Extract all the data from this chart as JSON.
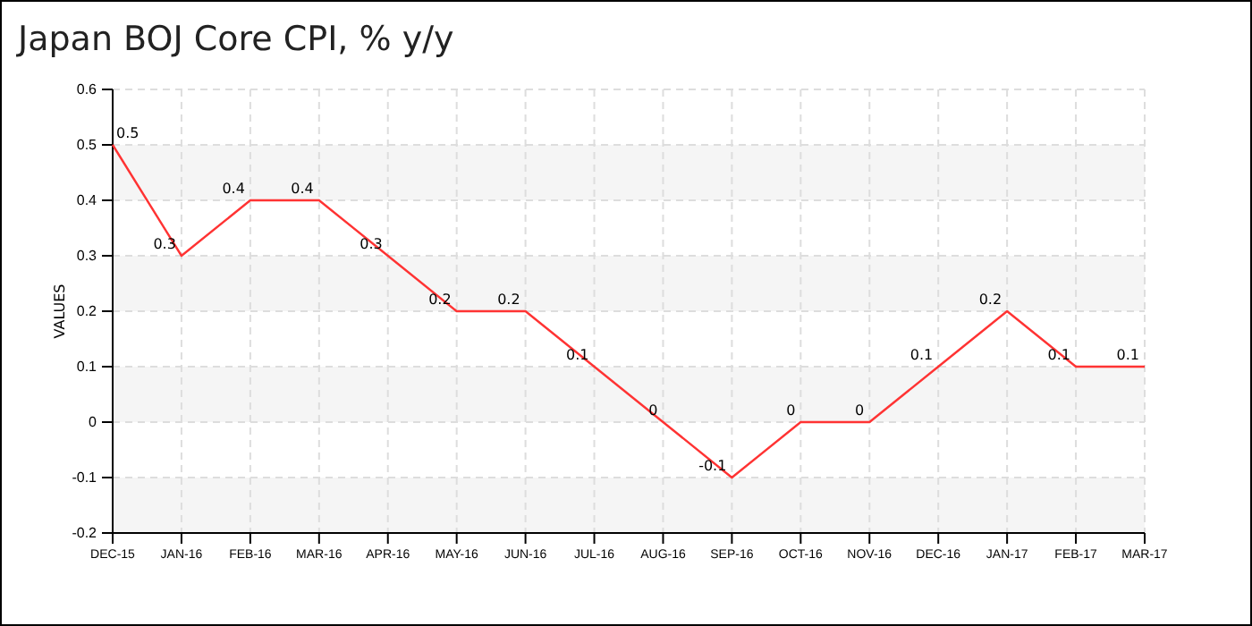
{
  "chart_data": {
    "type": "line",
    "title": "Japan BOJ Core CPI, % y/y",
    "ylabel": "VALUES",
    "categories": [
      "DEC-15",
      "JAN-16",
      "FEB-16",
      "MAR-16",
      "APR-16",
      "MAY-16",
      "JUN-16",
      "JUL-16",
      "AUG-16",
      "SEP-16",
      "OCT-16",
      "NOV-16",
      "DEC-16",
      "JAN-17",
      "FEB-17",
      "MAR-17"
    ],
    "series": [
      {
        "color": "#ff3333",
        "values": [
          0.5,
          0.3,
          0.4,
          0.4,
          0.3,
          0.2,
          0.2,
          0.1,
          0,
          -0.1,
          0,
          0,
          0.1,
          0.2,
          0.1,
          0.1
        ]
      }
    ],
    "ylim": [
      -0.2,
      0.6
    ],
    "yticks": [
      -0.2,
      -0.1,
      0,
      0.1,
      0.2,
      0.3,
      0.4,
      0.5,
      0.6
    ],
    "grid": true,
    "data_labels": true,
    "marker": "none",
    "line_style": "solid"
  }
}
